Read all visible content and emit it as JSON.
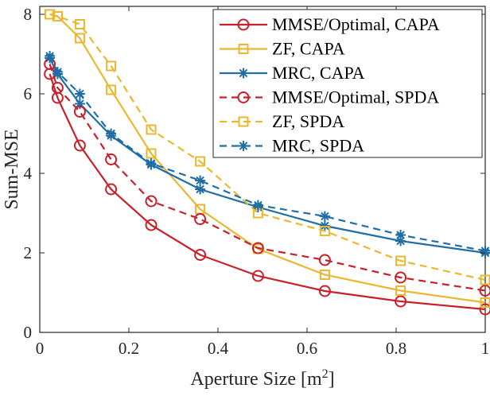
{
  "chart_data": {
    "type": "line",
    "title": "",
    "xlabel": "Aperture Size [m",
    "xlabel_sup": "2",
    "xlabel_suffix": "]",
    "ylabel": "Sum-MSE",
    "xlim": [
      0,
      1
    ],
    "ylim": [
      0,
      8.2
    ],
    "xticks": [
      0,
      0.2,
      0.4,
      0.6,
      0.8,
      1
    ],
    "xtick_labels": [
      "0",
      "0.2",
      "0.4",
      "0.6",
      "0.8",
      "1"
    ],
    "yticks": [
      0,
      2,
      4,
      6,
      8
    ],
    "ytick_labels": [
      "0",
      "2",
      "4",
      "6",
      "8"
    ],
    "grid": false,
    "legend_position": "top-right",
    "x": [
      0.0225,
      0.04,
      0.09,
      0.16,
      0.25,
      0.36,
      0.49,
      0.64,
      0.81,
      1.0
    ],
    "series": [
      {
        "name": "MMSE/Optimal, CAPA",
        "color": "#c8202a",
        "dash": "solid",
        "marker": "circle",
        "values": [
          6.5,
          5.9,
          4.7,
          3.6,
          2.7,
          1.95,
          1.42,
          1.04,
          0.78,
          0.58
        ]
      },
      {
        "name": "ZF, CAPA",
        "color": "#ebb731",
        "dash": "solid",
        "marker": "square",
        "values": [
          8.0,
          7.95,
          7.4,
          6.1,
          4.5,
          3.1,
          2.1,
          1.45,
          1.05,
          0.75
        ]
      },
      {
        "name": "MRC, CAPA",
        "color": "#1f6ea5",
        "dash": "solid",
        "marker": "asterisk",
        "values": [
          6.9,
          6.5,
          5.75,
          4.95,
          4.22,
          3.6,
          3.15,
          2.68,
          2.3,
          2.0
        ]
      },
      {
        "name": "MMSE/Optimal, SPDA",
        "color": "#c8202a",
        "dash": "dashed",
        "marker": "circle",
        "values": [
          6.75,
          6.15,
          5.55,
          4.35,
          3.3,
          2.85,
          2.12,
          1.82,
          1.38,
          1.05
        ]
      },
      {
        "name": "ZF, SPDA",
        "color": "#ebb731",
        "dash": "dashed",
        "marker": "square",
        "values": [
          8.0,
          7.95,
          7.75,
          6.7,
          5.1,
          4.3,
          3.0,
          2.55,
          1.8,
          1.32
        ]
      },
      {
        "name": "MRC, SPDA",
        "color": "#1f6ea5",
        "dash": "dashed",
        "marker": "asterisk",
        "values": [
          6.95,
          6.55,
          6.0,
          5.0,
          4.25,
          3.82,
          3.2,
          2.92,
          2.45,
          2.05
        ]
      }
    ]
  }
}
